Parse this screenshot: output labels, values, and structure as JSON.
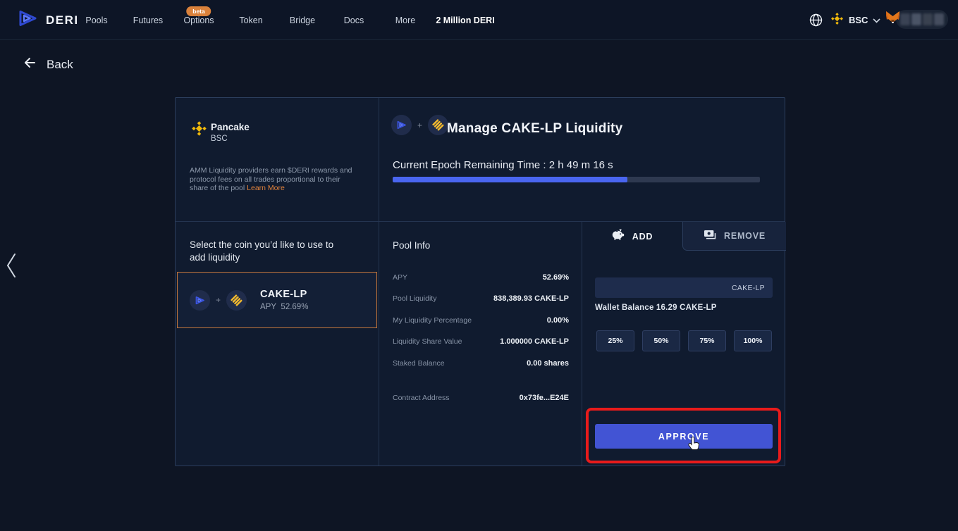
{
  "navbar": {
    "brand": "DERI",
    "items": [
      "Pools",
      "Futures",
      "Options",
      "Token",
      "Bridge",
      "Docs",
      "More",
      "2 Million DERI"
    ],
    "beta_badge": "beta",
    "network": "BSC"
  },
  "back_label": "Back",
  "pool_card": {
    "platform": "Pancake",
    "network": "BSC",
    "description": "AMM Liquidity providers earn $DERI rewards and protocol fees on all trades proportional to their share of the pool",
    "learn_more": "Learn More"
  },
  "coin_select": {
    "prompt": "Select the coin you’d like to use to add liquidity",
    "coin_name": "CAKE-LP",
    "apy_label": "APY",
    "apy_value": "52.69%"
  },
  "manage": {
    "title": "Manage CAKE-LP Liquidity",
    "epoch_text": "Current Epoch Remaining Time : 2 h 49 m 16 s",
    "progress_percent": 64
  },
  "pool_info": {
    "title": "Pool Info",
    "rows": [
      {
        "label": "APY",
        "value": "52.69%"
      },
      {
        "label": "Pool Liquidity",
        "value": "838,389.93 CAKE-LP"
      },
      {
        "label": "My Liquidity Percentage",
        "value": "0.00%"
      },
      {
        "label": "Liquidity Share Value",
        "value": "1.000000 CAKE-LP"
      },
      {
        "label": "Staked Balance",
        "value": "0.00 shares"
      },
      {
        "label": "Contract Address",
        "value": "0x73fe...E24E"
      }
    ]
  },
  "liquidity_panel": {
    "tab_add": "ADD",
    "tab_remove": "REMOVE",
    "active_tab": "ADD",
    "input_value": "",
    "input_unit": "CAKE-LP",
    "wallet_balance": "Wallet Balance 16.29 CAKE-LP",
    "percent_buttons": [
      "25%",
      "50%",
      "75%",
      "100%"
    ],
    "approve_label": "APPROVE"
  },
  "colors": {
    "accent_blue": "#4a66f0",
    "approve_blue": "#4254d4",
    "brand_orange": "#e0823c",
    "card_border_orange": "#c3763b",
    "annotation_red": "#e81b1b",
    "binance_yellow": "#f0b90b"
  }
}
